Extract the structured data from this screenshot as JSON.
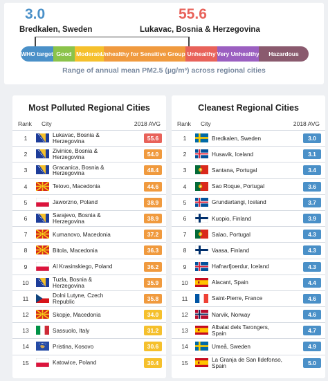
{
  "range": {
    "min_value": "3.0",
    "min_city": "Bredkalen, Sweden",
    "max_value": "55.6",
    "max_city": "Lukavac, Bosnia & Herzegovina",
    "caption": "Range of annual mean PM2.5 (µg/m³) across regional cities",
    "scale": [
      {
        "label": "WHO target",
        "color": "#4a90c8"
      },
      {
        "label": "Good",
        "color": "#8bc34a"
      },
      {
        "label": "Moderate",
        "color": "#f5c02c"
      },
      {
        "label": "Unhealthy for Sensitive Groups",
        "color": "#f09a3e"
      },
      {
        "label": "Unhealthy",
        "color": "#e8625a"
      },
      {
        "label": "Very Unhealthy",
        "color": "#9b5fc0"
      },
      {
        "label": "Hazardous",
        "color": "#8a5a6e"
      }
    ]
  },
  "table_headers": {
    "rank": "Rank",
    "city": "City",
    "avg": "2018 AVG"
  },
  "polluted_title": "Most Polluted Regional Cities",
  "clean_title": "Cleanest Regional Cities",
  "chart_data": [
    {
      "type": "table",
      "title": "Most Polluted Regional Cities",
      "columns": [
        "Rank",
        "City",
        "2018 AVG"
      ],
      "rows": [
        {
          "rank": "1",
          "city": "Lukavac, Bosnia & Herzegovina",
          "value": "55.6",
          "flag": "bosnia-flag-icon",
          "color": "#e8625a"
        },
        {
          "rank": "2",
          "city": "Zivinice, Bosnia & Herzegovina",
          "value": "54.0",
          "flag": "bosnia-flag-icon",
          "color": "#f09a3e"
        },
        {
          "rank": "3",
          "city": "Gracanica, Bosnia & Herzegovina",
          "value": "48.4",
          "flag": "bosnia-flag-icon",
          "color": "#f09a3e"
        },
        {
          "rank": "4",
          "city": "Tetovo, Macedonia",
          "value": "44.6",
          "flag": "macedonia-flag-icon",
          "color": "#f09a3e"
        },
        {
          "rank": "5",
          "city": "Jaworzno, Poland",
          "value": "38.9",
          "flag": "poland-flag-icon",
          "color": "#f09a3e"
        },
        {
          "rank": "6",
          "city": "Sarajevo, Bosnia & Herzegovina",
          "value": "38.9",
          "flag": "bosnia-flag-icon",
          "color": "#f09a3e"
        },
        {
          "rank": "7",
          "city": "Kumanovo, Macedonia",
          "value": "37.2",
          "flag": "macedonia-flag-icon",
          "color": "#f09a3e"
        },
        {
          "rank": "8",
          "city": "Bitola, Macedonia",
          "value": "36.3",
          "flag": "macedonia-flag-icon",
          "color": "#f09a3e"
        },
        {
          "rank": "9",
          "city": "Al Krasinskiego, Poland",
          "value": "36.2",
          "flag": "poland-flag-icon",
          "color": "#f09a3e"
        },
        {
          "rank": "10",
          "city": "Tuzla, Bosnia & Herzegovina",
          "value": "35.9",
          "flag": "bosnia-flag-icon",
          "color": "#f09a3e"
        },
        {
          "rank": "11",
          "city": "Dolni Lutyne, Czech Republic",
          "value": "35.8",
          "flag": "czech-flag-icon",
          "color": "#f09a3e"
        },
        {
          "rank": "12",
          "city": "Skopje, Macedonia",
          "value": "34.0",
          "flag": "macedonia-flag-icon",
          "color": "#f5c02c"
        },
        {
          "rank": "13",
          "city": "Sassuolo, Italy",
          "value": "31.2",
          "flag": "italy-flag-icon",
          "color": "#f5c02c"
        },
        {
          "rank": "14",
          "city": "Pristina, Kosovo",
          "value": "30.6",
          "flag": "kosovo-flag-icon",
          "color": "#f5c02c"
        },
        {
          "rank": "15",
          "city": "Katowice, Poland",
          "value": "30.4",
          "flag": "poland-flag-icon",
          "color": "#f5c02c"
        }
      ]
    },
    {
      "type": "table",
      "title": "Cleanest Regional Cities",
      "columns": [
        "Rank",
        "City",
        "2018 AVG"
      ],
      "rows": [
        {
          "rank": "1",
          "city": "Bredkalen, Sweden",
          "value": "3.0",
          "flag": "sweden-flag-icon",
          "color": "#4a90c8"
        },
        {
          "rank": "2",
          "city": "Husavik, Iceland",
          "value": "3.1",
          "flag": "iceland-flag-icon",
          "color": "#4a90c8"
        },
        {
          "rank": "3",
          "city": "Santana, Portugal",
          "value": "3.4",
          "flag": "portugal-flag-icon",
          "color": "#4a90c8"
        },
        {
          "rank": "4",
          "city": "Sao Roque, Portugal",
          "value": "3.6",
          "flag": "portugal-flag-icon",
          "color": "#4a90c8"
        },
        {
          "rank": "5",
          "city": "Grundartangi, Iceland",
          "value": "3.7",
          "flag": "iceland-flag-icon",
          "color": "#4a90c8"
        },
        {
          "rank": "6",
          "city": "Kuopio, Finland",
          "value": "3.9",
          "flag": "finland-flag-icon",
          "color": "#4a90c8"
        },
        {
          "rank": "7",
          "city": "Salao, Portugal",
          "value": "4.3",
          "flag": "portugal-flag-icon",
          "color": "#4a90c8"
        },
        {
          "rank": "8",
          "city": "Vaasa, Finland",
          "value": "4.3",
          "flag": "finland-flag-icon",
          "color": "#4a90c8"
        },
        {
          "rank": "9",
          "city": "Hafnarfjoerdur, Iceland",
          "value": "4.3",
          "flag": "iceland-flag-icon",
          "color": "#4a90c8"
        },
        {
          "rank": "10",
          "city": "Alacant, Spain",
          "value": "4.4",
          "flag": "spain-flag-icon",
          "color": "#4a90c8"
        },
        {
          "rank": "11",
          "city": "Saint-Pierre, France",
          "value": "4.6",
          "flag": "france-flag-icon",
          "color": "#4a90c8"
        },
        {
          "rank": "12",
          "city": "Narvik, Norway",
          "value": "4.6",
          "flag": "norway-flag-icon",
          "color": "#4a90c8"
        },
        {
          "rank": "13",
          "city": "Albalat dels Tarongers, Spain",
          "value": "4.7",
          "flag": "spain-flag-icon",
          "color": "#4a90c8"
        },
        {
          "rank": "14",
          "city": "Umeå, Sweden",
          "value": "4.9",
          "flag": "sweden-flag-icon",
          "color": "#4a90c8"
        },
        {
          "rank": "15",
          "city": "La Granja de San Ildefonso, Spain",
          "value": "5.0",
          "flag": "spain-flag-icon",
          "color": "#4a90c8"
        }
      ]
    }
  ]
}
